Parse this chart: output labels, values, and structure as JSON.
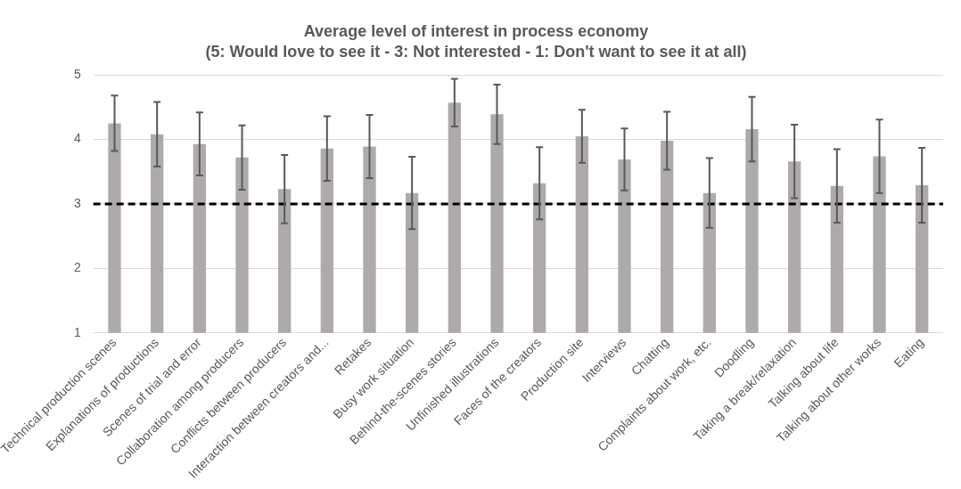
{
  "chart_data": {
    "type": "bar",
    "title": "Average level of interest in process economy",
    "subtitle": "(5: Would love to see it - 3: Not interested - 1: Don't want to see it at all)",
    "categories": [
      "Technical production scenes",
      "Explanations of productions",
      "Scenes of trial and error",
      "Collaboration among producers",
      "Conflicts between producers",
      "Interaction between creators and...",
      "Retakes",
      "Busy work situation",
      "Behind-the-scenes stories",
      "Unfinished illustrations",
      "Faces of the creators",
      "Production site",
      "Interviews",
      "Chatting",
      "Complaints about work, etc.",
      "Doodling",
      "Taking a break/relaxation",
      "Talking about life",
      "Talking about other works",
      "Eating"
    ],
    "values": [
      4.25,
      4.08,
      3.93,
      3.72,
      3.23,
      3.86,
      3.89,
      3.17,
      4.57,
      4.39,
      3.32,
      4.05,
      3.69,
      3.98,
      3.17,
      4.16,
      3.66,
      3.28,
      3.74,
      3.29
    ],
    "errors": [
      0.43,
      0.5,
      0.49,
      0.5,
      0.53,
      0.5,
      0.49,
      0.56,
      0.37,
      0.46,
      0.56,
      0.41,
      0.48,
      0.45,
      0.54,
      0.5,
      0.57,
      0.57,
      0.57,
      0.58
    ],
    "color": "#aeaaaa",
    "ylim": [
      1,
      5
    ],
    "yticks": [
      1,
      2,
      3,
      4,
      5
    ],
    "grid": "y",
    "legend": false,
    "ref_lines": [
      {
        "axis": "y",
        "value": 3,
        "color": "#000000",
        "line_style": "dashed"
      }
    ]
  }
}
